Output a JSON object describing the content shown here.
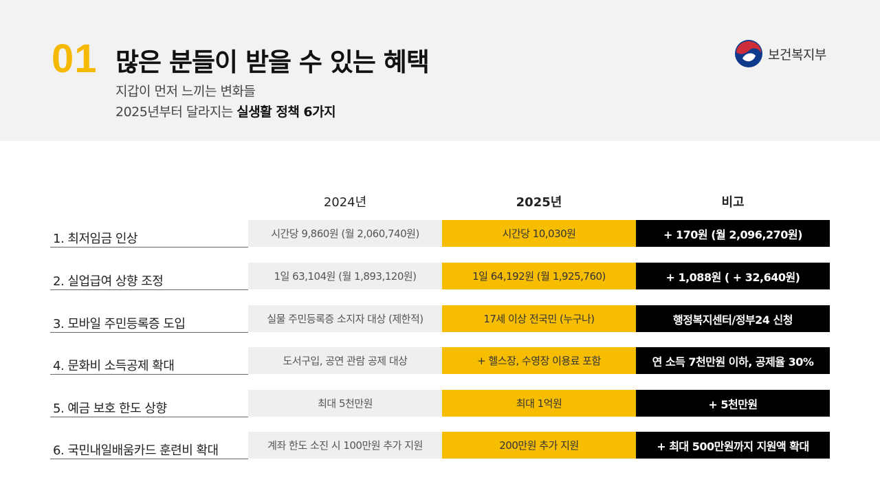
{
  "header": {
    "number": "01",
    "title": "많은 분들이 받을 수 있는 혜택",
    "subtitle_line1": "지갑이 먼저 느끼는 변화들",
    "subtitle_line2_prefix": "2025년부터 달라지는 ",
    "subtitle_line2_bold": "실생활 정책 6가지",
    "logo_text": "보건복지부"
  },
  "table": {
    "headers": [
      "2024년",
      "2025년",
      "비고"
    ],
    "rows": [
      {
        "label": "1. 최저임금 인상",
        "y2024": "시간당 9,860원 (월 2,060,740원)",
        "y2025": "시간당 10,030원",
        "note": "+ 170원 (월 2,096,270원)"
      },
      {
        "label": "2. 실업급여 상향 조정",
        "y2024": "1일 63,104원 (월 1,893,120원)",
        "y2025": "1일 64,192원 (월 1,925,760)",
        "note": "+ 1,088원 ( + 32,640원)"
      },
      {
        "label": "3. 모바일 주민등록증 도입",
        "y2024": "실물 주민등록증 소지자 대상 (제한적)",
        "y2025": "17세 이상 전국민 (누구나)",
        "note": "행정복지센터/정부24 신청"
      },
      {
        "label": "4. 문화비 소득공제 확대",
        "y2024": "도서구입, 공연 관람 공제 대상",
        "y2025": "+ 헬스장, 수영장 이용료 포함",
        "note": "연 소득 7천만원 이하, 공제율 30%"
      },
      {
        "label": "5. 예금 보호 한도 상향",
        "y2024": "최대 5천만원",
        "y2025": "최대 1억원",
        "note": "+ 5천만원"
      },
      {
        "label": "6. 국민내일배움카드 훈련비 확대",
        "y2024": "계좌 한도 소진 시 100만원 추가 지원",
        "y2025": "200만원 추가 지원",
        "note": "+ 최대 500만원까지 지원액 확대"
      }
    ]
  },
  "colors": {
    "accent_yellow": "#f7bd00",
    "number_yellow": "#f5b900",
    "header_bg": "#f2f2f2",
    "note_bg": "#000000",
    "logo_red": "#cd2e3a",
    "logo_blue": "#0f3a8c"
  }
}
